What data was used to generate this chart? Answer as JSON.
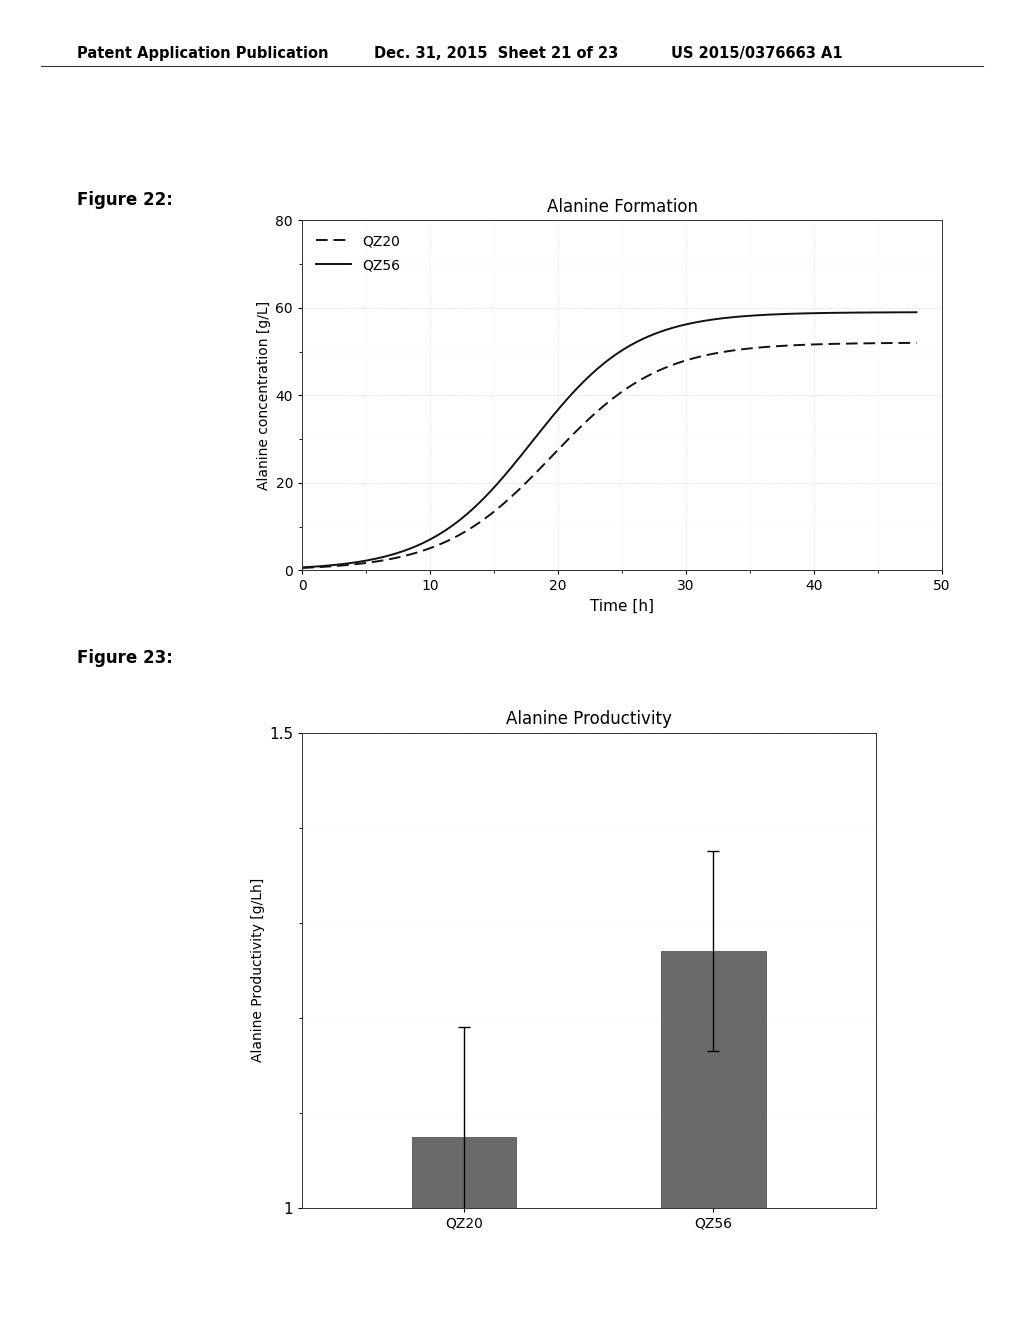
{
  "fig22_title": "Alanine Formation",
  "fig22_xlabel": "Time [h]",
  "fig22_ylabel": "Alanine concentration [g/L]",
  "fig22_xlim": [
    0,
    50
  ],
  "fig22_ylim": [
    0,
    80
  ],
  "fig22_xticks": [
    0,
    10,
    20,
    30,
    40,
    50
  ],
  "fig22_yticks": [
    0,
    20,
    40,
    60,
    80
  ],
  "fig22_legend": [
    "QZ20",
    "QZ56"
  ],
  "fig23_title": "Alanine Productivity",
  "fig23_xlabel": "",
  "fig23_ylabel": "Alanine Productivity [g/Lh]",
  "fig23_ylim": [
    1.0,
    1.5
  ],
  "fig23_yticks": [
    1.0,
    1.5
  ],
  "fig23_categories": [
    "QZ20",
    "QZ56"
  ],
  "fig23_values": [
    1.075,
    1.27
  ],
  "fig23_errors": [
    0.115,
    0.105
  ],
  "fig23_bar_color": "#6a6a6a",
  "header_left": "Patent Application Publication",
  "header_mid": "Dec. 31, 2015  Sheet 21 of 23",
  "header_right": "US 2015/0376663 A1",
  "fig22_label": "Figure 22:",
  "fig23_label": "Figure 23:",
  "line_color": "#111111",
  "bg_color": "#ffffff",
  "grid_color": "#bbbbbb",
  "dotted_style": ":"
}
